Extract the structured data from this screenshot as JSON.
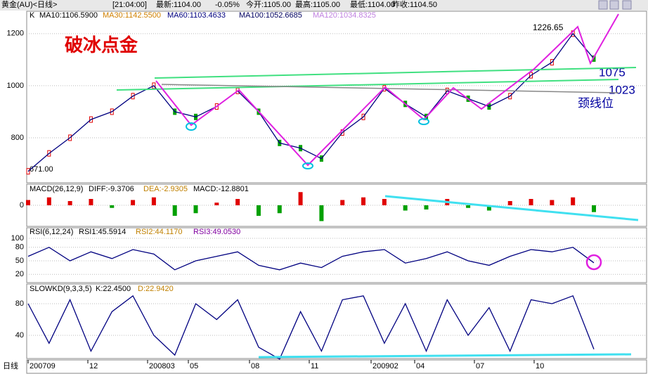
{
  "header": {
    "symbol": "黄金(AU)<日线>",
    "time": "[21:04:00]",
    "fields": [
      "最新:1104.00",
      "-0.05%",
      "今开:1105.00",
      "最高:1105.00",
      "最低:1104.00",
      "昨收:1104.50"
    ]
  },
  "main": {
    "label": "K",
    "mas": [
      {
        "text": "MA10:1106.5900",
        "color": "#000000"
      },
      {
        "text": "MA30:1142.5500",
        "color": "#d08000"
      },
      {
        "text": "MA60:1103.4633",
        "color": "#000080"
      },
      {
        "text": "MA100:1052.6685",
        "color": "#000060"
      },
      {
        "text": "MA120:1034.8325",
        "color": "#c080e0"
      }
    ],
    "title": "破冰点金",
    "high_label": "1226.65",
    "low_label": "671.00",
    "levels": [
      "1075",
      "1023"
    ],
    "neck_label": "颈线位",
    "ylim": [
      627,
      1286
    ],
    "yticks": [
      1200,
      1000,
      800
    ],
    "price": [
      671,
      740,
      800,
      870,
      900,
      960,
      1000,
      900,
      880,
      920,
      980,
      900,
      780,
      760,
      720,
      820,
      880,
      990,
      930,
      880,
      980,
      950,
      920,
      960,
      1040,
      1090,
      1200,
      1104
    ]
  },
  "macd": {
    "label": "MACD(26,12,9)",
    "diff": "DIFF:-9.3706",
    "dea": "DEA:-2.9305",
    "macd": "MACD:-12.8801",
    "ylim": [
      -40,
      40
    ],
    "yticks": [
      0
    ],
    "hist": [
      10,
      15,
      8,
      12,
      -5,
      10,
      15,
      -20,
      -15,
      5,
      12,
      -20,
      -15,
      25,
      -30,
      10,
      15,
      12,
      -10,
      -8,
      12,
      -5,
      -10,
      8,
      12,
      10,
      15,
      -12.8801
    ]
  },
  "rsi": {
    "label": "RSI(6,12,24)",
    "r1": "RSI1:45.5914",
    "r2": "RSI2:44.1170",
    "r3": "RSI3:49.0530",
    "ylim": [
      0,
      100
    ],
    "yticks": [
      100,
      80,
      50,
      20
    ],
    "values": [
      60,
      80,
      50,
      70,
      55,
      75,
      65,
      30,
      50,
      60,
      70,
      40,
      30,
      45,
      35,
      60,
      70,
      75,
      45,
      55,
      70,
      50,
      40,
      60,
      75,
      70,
      80,
      45.5914
    ]
  },
  "kd": {
    "label": "SLOWKD(9,3,3,5)",
    "k": "K:22.4500",
    "d": "D:22.9420",
    "ylim": [
      0,
      100
    ],
    "yticks": [
      80,
      40
    ],
    "values": [
      80,
      30,
      85,
      20,
      70,
      90,
      40,
      15,
      80,
      60,
      85,
      25,
      10,
      70,
      20,
      85,
      90,
      30,
      80,
      20,
      85,
      40,
      75,
      20,
      85,
      80,
      90,
      22.45
    ]
  },
  "xaxis": {
    "label": "日线",
    "ticks": [
      "200709",
      "12",
      "200803",
      "05",
      "08",
      "11",
      "200902",
      "04",
      "07",
      "10"
    ]
  }
}
